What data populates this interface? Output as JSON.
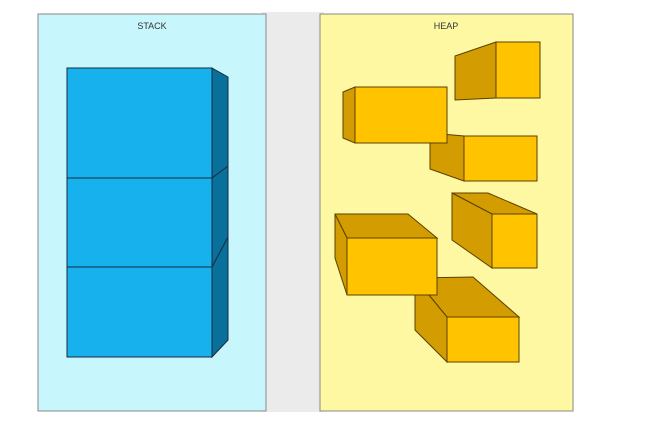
{
  "stack": {
    "label": "STACK",
    "block_count": 3
  },
  "heap": {
    "label": "HEAP",
    "block_count": 6
  },
  "colors": {
    "stack_bg": "#c8f6fd",
    "heap_bg": "#fff8a3",
    "stack_block_front": "#17b2ee",
    "stack_block_side": "#08709a",
    "heap_block_front": "#ffc300",
    "heap_block_side": "#d39c00",
    "divider_bg": "#ebebeb"
  }
}
